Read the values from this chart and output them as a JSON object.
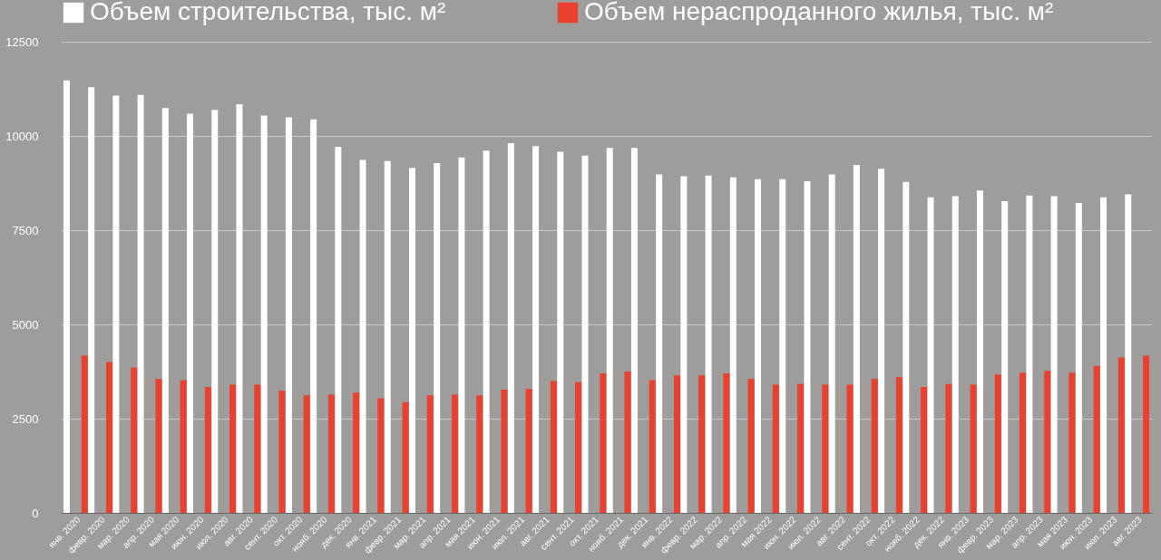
{
  "chart_data": {
    "type": "bar",
    "categories": [
      "янв. 2020",
      "февр. 2020",
      "мар. 2020",
      "апр. 2020",
      "мая 2020",
      "июн. 2020",
      "июл. 2020",
      "авг. 2020",
      "сент. 2020",
      "окт. 2020",
      "нояб. 2020",
      "дек. 2020",
      "янв. 2021",
      "февр. 2021",
      "мар. 2021",
      "апр. 2021",
      "мая 2021",
      "июн. 2021",
      "июл. 2021",
      "авг. 2021",
      "сент. 2021",
      "окт. 2021",
      "нояб. 2021",
      "дек. 2021",
      "янв. 2022",
      "февр. 2022",
      "мар. 2022",
      "апр. 2022",
      "мая 2022",
      "июн. 2022",
      "июл. 2022",
      "авг. 2022",
      "сент. 2022",
      "окт. 2022",
      "нояб. 2022",
      "дек. 2022",
      "янв. 2023",
      "февр. 2023",
      "мар. 2023",
      "апр. 2023",
      "мая 2023",
      "июн. 2023",
      "июл. 2023",
      "авг. 2023"
    ],
    "series": [
      {
        "name": "Объем строительства, тыс. м²",
        "color": "#ffffff",
        "values": [
          11470,
          11290,
          11070,
          11090,
          10740,
          10590,
          10690,
          10840,
          10540,
          10490,
          10440,
          9710,
          9360,
          9330,
          9150,
          9280,
          9430,
          9610,
          9810,
          9730,
          9580,
          9480,
          9680,
          9680,
          8980,
          8930,
          8950,
          8900,
          8850,
          8850,
          8800,
          8980,
          9230,
          9130,
          8780,
          8370,
          8400,
          8550,
          8270,
          8420,
          8400,
          8220,
          8370,
          8450
        ]
      },
      {
        "name": "Объем нераспроданного жилья, тыс. м²",
        "color": "#e8412f",
        "values": [
          4170,
          4000,
          3850,
          3550,
          3520,
          3340,
          3400,
          3400,
          3240,
          3120,
          3140,
          3190,
          3040,
          2940,
          3120,
          3140,
          3120,
          3270,
          3290,
          3500,
          3470,
          3700,
          3750,
          3520,
          3650,
          3650,
          3700,
          3550,
          3400,
          3420,
          3400,
          3400,
          3550,
          3600,
          3340,
          3420,
          3400,
          3670,
          3720,
          3770,
          3720,
          3900,
          4120,
          4170
        ]
      }
    ],
    "ylim": [
      0,
      12500
    ],
    "yticks": [
      0,
      2500,
      5000,
      7500,
      10000,
      12500
    ],
    "grid": "y",
    "legend": "top"
  }
}
